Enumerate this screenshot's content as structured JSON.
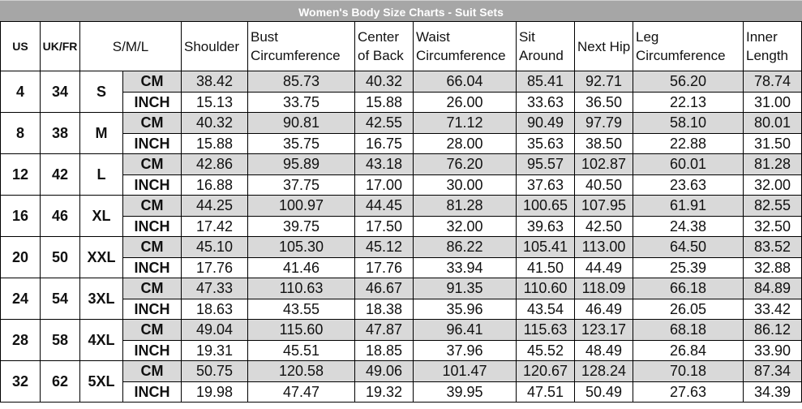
{
  "title": "Women's Body Size Charts - Suit Sets",
  "headers": {
    "us": "US",
    "ukfr": "UK/FR",
    "sml": "S/M/L",
    "measures": [
      "Shoulder",
      "Bust Circumference",
      "Center of Back",
      "Waist Circumference",
      "Sit Around",
      "Next Hip",
      "Leg Circumference",
      "Inner Length"
    ]
  },
  "units": {
    "cm": "CM",
    "inch": "INCH"
  },
  "colors": {
    "title_bg": "#a6a6a6",
    "cm_row_bg": "#d9d9d9"
  },
  "sizes": [
    {
      "us": "4",
      "ukfr": "34",
      "size": "S",
      "cm": [
        "38.42",
        "85.73",
        "40.32",
        "66.04",
        "85.41",
        "92.71",
        "56.20",
        "78.74"
      ],
      "inch": [
        "15.13",
        "33.75",
        "15.88",
        "26.00",
        "33.63",
        "36.50",
        "22.13",
        "31.00"
      ]
    },
    {
      "us": "8",
      "ukfr": "38",
      "size": "M",
      "cm": [
        "40.32",
        "90.81",
        "42.55",
        "71.12",
        "90.49",
        "97.79",
        "58.10",
        "80.01"
      ],
      "inch": [
        "15.88",
        "35.75",
        "16.75",
        "28.00",
        "35.63",
        "38.50",
        "22.88",
        "31.50"
      ]
    },
    {
      "us": "12",
      "ukfr": "42",
      "size": "L",
      "cm": [
        "42.86",
        "95.89",
        "43.18",
        "76.20",
        "95.57",
        "102.87",
        "60.01",
        "81.28"
      ],
      "inch": [
        "16.88",
        "37.75",
        "17.00",
        "30.00",
        "37.63",
        "40.50",
        "23.63",
        "32.00"
      ]
    },
    {
      "us": "16",
      "ukfr": "46",
      "size": "XL",
      "cm": [
        "44.25",
        "100.97",
        "44.45",
        "81.28",
        "100.65",
        "107.95",
        "61.91",
        "82.55"
      ],
      "inch": [
        "17.42",
        "39.75",
        "17.50",
        "32.00",
        "39.63",
        "42.50",
        "24.38",
        "32.50"
      ]
    },
    {
      "us": "20",
      "ukfr": "50",
      "size": "XXL",
      "cm": [
        "45.10",
        "105.30",
        "45.12",
        "86.22",
        "105.41",
        "113.00",
        "64.50",
        "83.52"
      ],
      "inch": [
        "17.76",
        "41.46",
        "17.76",
        "33.94",
        "41.50",
        "44.49",
        "25.39",
        "32.88"
      ]
    },
    {
      "us": "24",
      "ukfr": "54",
      "size": "3XL",
      "cm": [
        "47.33",
        "110.63",
        "46.67",
        "91.35",
        "110.60",
        "118.09",
        "66.18",
        "84.89"
      ],
      "inch": [
        "18.63",
        "43.55",
        "18.38",
        "35.96",
        "43.54",
        "46.49",
        "26.05",
        "33.42"
      ]
    },
    {
      "us": "28",
      "ukfr": "58",
      "size": "4XL",
      "cm": [
        "49.04",
        "115.60",
        "47.87",
        "96.41",
        "115.63",
        "123.17",
        "68.18",
        "86.12"
      ],
      "inch": [
        "19.31",
        "45.51",
        "18.85",
        "37.96",
        "45.52",
        "48.49",
        "26.84",
        "33.90"
      ]
    },
    {
      "us": "32",
      "ukfr": "62",
      "size": "5XL",
      "cm": [
        "50.75",
        "120.58",
        "49.06",
        "101.47",
        "120.67",
        "128.24",
        "70.18",
        "87.34"
      ],
      "inch": [
        "19.98",
        "47.47",
        "19.32",
        "39.95",
        "47.51",
        "50.49",
        "27.63",
        "34.39"
      ]
    }
  ]
}
